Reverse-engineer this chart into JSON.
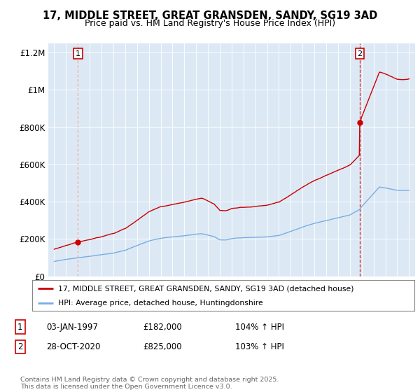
{
  "title_line1": "17, MIDDLE STREET, GREAT GRANSDEN, SANDY, SG19 3AD",
  "title_line2": "Price paid vs. HM Land Registry's House Price Index (HPI)",
  "bg_color": "#dce9f5",
  "red_color": "#cc0000",
  "blue_color": "#7aade0",
  "dashed_color": "#cc0000",
  "marker1_x": 1997.01,
  "marker1_y": 182000,
  "marker2_x": 2020.83,
  "marker2_y": 825000,
  "legend_entry1": "17, MIDDLE STREET, GREAT GRANSDEN, SANDY, SG19 3AD (detached house)",
  "legend_entry2": "HPI: Average price, detached house, Huntingdonshire",
  "annotation1_num": "1",
  "annotation1_date": "03-JAN-1997",
  "annotation1_price": "£182,000",
  "annotation1_hpi": "104% ↑ HPI",
  "annotation2_num": "2",
  "annotation2_date": "28-OCT-2020",
  "annotation2_price": "£825,000",
  "annotation2_hpi": "103% ↑ HPI",
  "footer": "Contains HM Land Registry data © Crown copyright and database right 2025.\nThis data is licensed under the Open Government Licence v3.0.",
  "ylim_min": 0,
  "ylim_max": 1250000,
  "yticks": [
    0,
    200000,
    400000,
    600000,
    800000,
    1000000,
    1200000
  ],
  "ytick_labels": [
    "£0",
    "£200K",
    "£400K",
    "£600K",
    "£800K",
    "£1M",
    "£1.2M"
  ],
  "xlim_min": 1994.5,
  "xlim_max": 2025.5
}
